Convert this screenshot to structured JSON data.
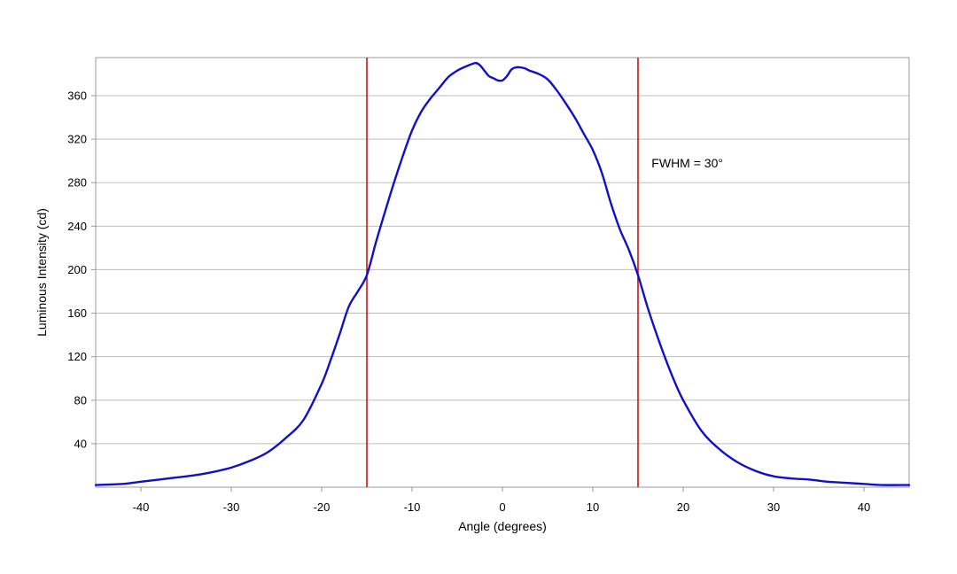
{
  "chart_data": {
    "type": "line",
    "title": "",
    "xlabel": "Angle (degrees)",
    "ylabel": "Luminous Intensity (cd)",
    "xlim": [
      -45,
      45
    ],
    "ylim": [
      0,
      395
    ],
    "x_ticks": [
      -40,
      -30,
      -20,
      -10,
      0,
      10,
      20,
      30,
      40
    ],
    "y_ticks": [
      40,
      80,
      120,
      160,
      200,
      240,
      280,
      320,
      360
    ],
    "x_tick_labels": [
      "-40",
      "-30",
      "-20",
      "-10",
      "0",
      "10",
      "20",
      "30",
      "40"
    ],
    "y_tick_labels": [
      "40",
      "80",
      "120",
      "160",
      "200",
      "240",
      "280",
      "320",
      "360"
    ],
    "grid": {
      "horizontal": true,
      "vertical": false
    },
    "series": [
      {
        "color": "#1010cc",
        "x": [
          -45,
          -42,
          -40,
          -38,
          -36,
          -34,
          -32,
          -30,
          -28,
          -26,
          -24,
          -22,
          -20,
          -19,
          -18,
          -17,
          -16,
          -15,
          -14,
          -13,
          -12,
          -11,
          -10,
          -9,
          -8,
          -7,
          -6,
          -5,
          -4,
          -3,
          -2.5,
          -2,
          -1.5,
          -1,
          -0.5,
          0,
          0.5,
          1,
          1.5,
          2,
          2.5,
          3,
          4,
          5,
          6,
          7,
          8,
          9,
          10,
          11,
          12,
          13,
          14,
          15,
          16,
          17,
          18,
          19,
          20,
          22,
          24,
          26,
          28,
          30,
          32,
          34,
          36,
          38,
          40,
          42,
          45
        ],
        "y": [
          2,
          3,
          5,
          7,
          9,
          11,
          14,
          18,
          24,
          32,
          45,
          62,
          95,
          117,
          141,
          166,
          180,
          195,
          225,
          253,
          280,
          305,
          328,
          345,
          357,
          367,
          377,
          383,
          387,
          390,
          388,
          383,
          378,
          376,
          374,
          374,
          378,
          384,
          386,
          386,
          385,
          383,
          380,
          375,
          365,
          353,
          340,
          325,
          310,
          289,
          261,
          237,
          218,
          195,
          167,
          142,
          119,
          98,
          80,
          52,
          35,
          23,
          15,
          10,
          8,
          7,
          5,
          4,
          3,
          2,
          2
        ]
      }
    ],
    "reference_lines": [
      {
        "axis": "x",
        "value": -15,
        "color": "#cc1111"
      },
      {
        "axis": "x",
        "value": 15,
        "color": "#cc1111"
      }
    ],
    "annotations": [
      {
        "text": "FWHM = 30°",
        "x": 16.5,
        "y": 298
      }
    ]
  }
}
